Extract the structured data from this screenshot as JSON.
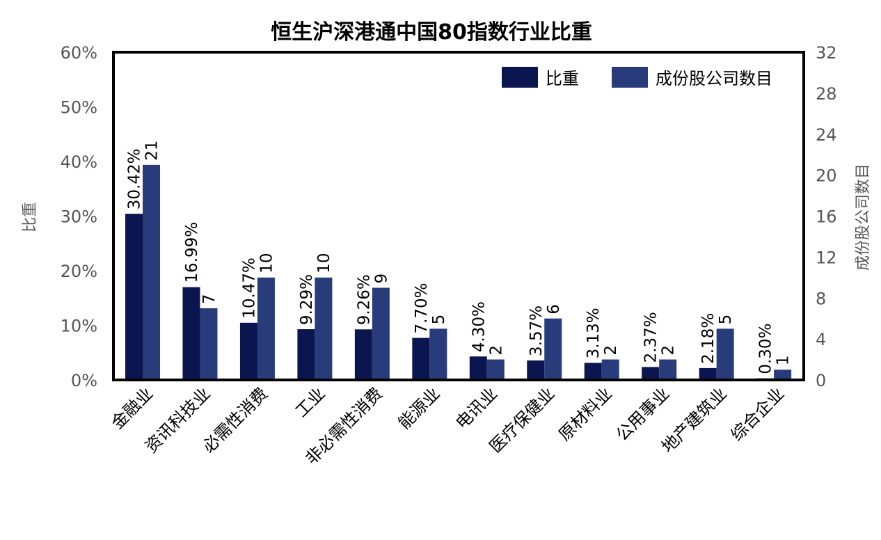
{
  "colors": {
    "weight": "#0b1650",
    "count": "#283b7b",
    "frame": "#000000",
    "tick_text": "#555555"
  },
  "chart_data": {
    "type": "bar",
    "title": "恒生沪深港通中国80指数行业比重",
    "ylabel": "比重",
    "y2label": "成份股公司数目",
    "ylim": [
      0,
      60
    ],
    "y2lim": [
      0,
      32
    ],
    "yticks": [
      "0%",
      "10%",
      "20%",
      "30%",
      "40%",
      "50%",
      "60%"
    ],
    "y2ticks": [
      "0",
      "4",
      "8",
      "12",
      "16",
      "20",
      "24",
      "28",
      "32"
    ],
    "grid": false,
    "legend_position": "top-right",
    "categories": [
      "金融业",
      "资讯科技业",
      "必需性消费",
      "工业",
      "非必需性消费",
      "能源业",
      "电讯业",
      "医疗保健业",
      "原材料业",
      "公用事业",
      "地产建筑业",
      "综合企业"
    ],
    "series": [
      {
        "name": "比重",
        "axis": "left",
        "values": [
          30.42,
          16.99,
          10.47,
          9.29,
          9.26,
          7.7,
          4.3,
          3.57,
          3.13,
          2.37,
          2.18,
          0.3
        ],
        "labels": [
          "30.42%",
          "16.99%",
          "10.47%",
          "9.29%",
          "9.26%",
          "7.70%",
          "4.30%",
          "3.57%",
          "3.13%",
          "2.37%",
          "2.18%",
          "0.30%"
        ]
      },
      {
        "name": "成份股公司数目",
        "axis": "right",
        "values": [
          21,
          7,
          10,
          10,
          9,
          5,
          2,
          6,
          2,
          2,
          5,
          1
        ],
        "labels": [
          "21",
          "7",
          "10",
          "10",
          "9",
          "5",
          "2",
          "6",
          "2",
          "2",
          "5",
          "1"
        ]
      }
    ]
  }
}
